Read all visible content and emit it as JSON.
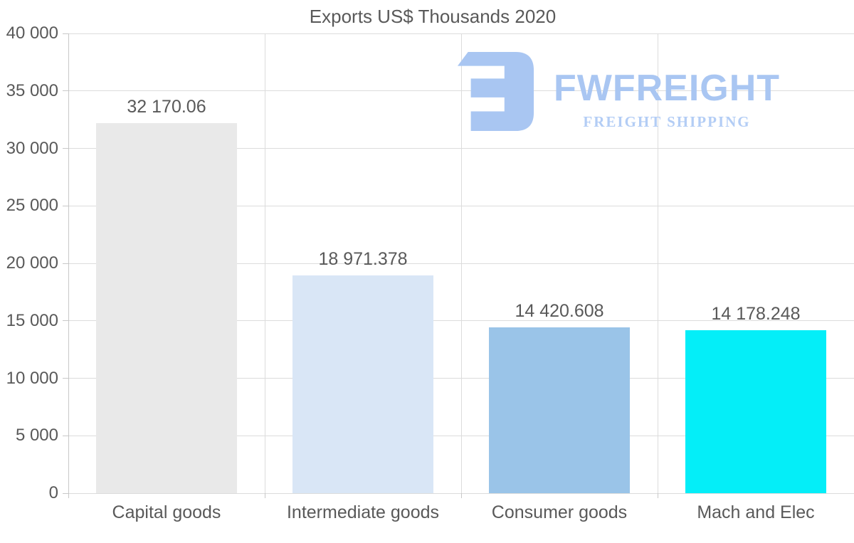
{
  "title": "Exports US$ Thousands 2020",
  "logo": {
    "brand": "FWFREIGHT",
    "tagline": "FREIGHT SHIPPING",
    "brand_color": "#a9c6f2",
    "tagline_color": "#b3cdf5",
    "icon_color": "#a9c6f2",
    "icon": "fw-logo-icon"
  },
  "chart_data": {
    "type": "bar",
    "title": "Exports US$ Thousands 2020",
    "categories": [
      "Capital goods",
      "Intermediate goods",
      "Consumer goods",
      "Mach and Elec"
    ],
    "values": [
      32170.06,
      18971.378,
      14420.608,
      14178.248
    ],
    "value_labels": [
      "32 170.06",
      "18 971.378",
      "14 420.608",
      "14 178.248"
    ],
    "bar_colors": [
      "#e9e9e9",
      "#d9e6f6",
      "#9ac4e8",
      "#04eef8"
    ],
    "xlabel": "",
    "ylabel": "",
    "ylim": [
      0,
      40000
    ],
    "ytick_step": 5000,
    "ytick_labels": [
      "0",
      "5 000",
      "10 000",
      "15 000",
      "20 000",
      "25 000",
      "30 000",
      "35 000",
      "40 000"
    ],
    "grid": true,
    "legend": false,
    "grid_color": "#dcdcdc",
    "axis_color": "#c8c8c8",
    "label_color": "#595959"
  }
}
